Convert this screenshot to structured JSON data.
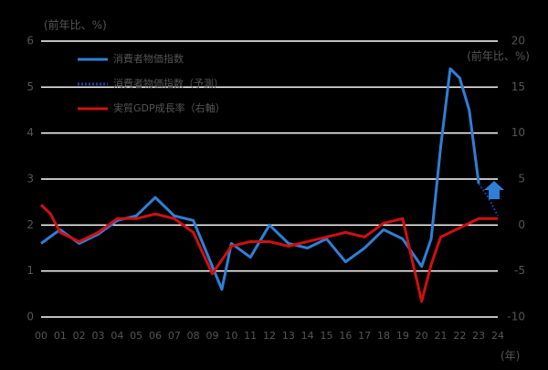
{
  "chart_data": {
    "type": "line",
    "y_label": "(前年比、%)",
    "y2_label": "(前年比、%)",
    "x_unit": "(年)",
    "xlim": [
      2000,
      2024
    ],
    "ylim": [
      0,
      6
    ],
    "y2lim": [
      -10,
      20
    ],
    "xticks": [
      {
        "value": 2000,
        "label": "00"
      },
      {
        "value": 2001,
        "label": "01"
      },
      {
        "value": 2002,
        "label": "02"
      },
      {
        "value": 2003,
        "label": "03"
      },
      {
        "value": 2004,
        "label": "04"
      },
      {
        "value": 2005,
        "label": "05"
      },
      {
        "value": 2006,
        "label": "06"
      },
      {
        "value": 2007,
        "label": "07"
      },
      {
        "value": 2008,
        "label": "08"
      },
      {
        "value": 2009,
        "label": "09"
      },
      {
        "value": 2010,
        "label": "10"
      },
      {
        "value": 2011,
        "label": "11"
      },
      {
        "value": 2012,
        "label": "12"
      },
      {
        "value": 2013,
        "label": "13"
      },
      {
        "value": 2014,
        "label": "14"
      },
      {
        "value": 2015,
        "label": "15"
      },
      {
        "value": 2016,
        "label": "16"
      },
      {
        "value": 2017,
        "label": "17"
      },
      {
        "value": 2018,
        "label": "18"
      },
      {
        "value": 2019,
        "label": "19"
      },
      {
        "value": 2020,
        "label": "20"
      },
      {
        "value": 2021,
        "label": "21"
      },
      {
        "value": 2022,
        "label": "22"
      },
      {
        "value": 2023,
        "label": "23"
      },
      {
        "value": 2024,
        "label": "24"
      }
    ],
    "yticks": [
      0,
      1,
      2,
      3,
      4,
      5,
      6
    ],
    "y2ticks": [
      -10,
      -5,
      0,
      5,
      10,
      15,
      20
    ],
    "grid": true,
    "series": [
      {
        "name": "消費者物価指数",
        "color": "#2f7fd6",
        "style": "solid",
        "x": [
          2000,
          2001,
          2002,
          2003,
          2004,
          2005,
          2006,
          2007,
          2008,
          2009,
          2009.5,
          2010,
          2011,
          2012,
          2013,
          2014,
          2015,
          2016,
          2017,
          2018,
          2019,
          2020,
          2020.5,
          2021,
          2021.5,
          2022,
          2022.5,
          2023
        ],
        "values": [
          1.6,
          1.9,
          1.6,
          1.8,
          2.1,
          2.2,
          2.6,
          2.2,
          2.1,
          1.1,
          0.6,
          1.6,
          1.3,
          2.0,
          1.6,
          1.5,
          1.7,
          1.2,
          1.5,
          1.9,
          1.7,
          1.1,
          1.7,
          3.7,
          5.4,
          5.2,
          4.5,
          2.9
        ]
      },
      {
        "name": "消費者物価指数（予測）",
        "color": "#1f3f9f",
        "style": "dotted",
        "x": [
          2023,
          2023.5,
          2024
        ],
        "values": [
          2.9,
          2.6,
          2.2
        ]
      },
      {
        "name": "実質GDP成長率（右軸）",
        "color": "#d01010",
        "style": "solid",
        "axis": "y2",
        "x": [
          2000,
          2000.5,
          2001,
          2002,
          2003,
          2004,
          2005,
          2006,
          2007,
          2008,
          2009,
          2010,
          2011,
          2012,
          2013,
          2014,
          2015,
          2016,
          2017,
          2018,
          2019,
          2020,
          2020.5,
          2021,
          2022,
          2023,
          2024
        ],
        "values": [
          2.2,
          1.2,
          -0.8,
          -1.8,
          -0.8,
          0.7,
          0.7,
          1.2,
          0.7,
          -0.8,
          -5.3,
          -2.3,
          -1.8,
          -1.8,
          -2.3,
          -1.8,
          -1.3,
          -0.8,
          -1.3,
          0.2,
          0.7,
          -8.3,
          -4.3,
          -1.3,
          -0.3,
          0.7,
          0.7
        ]
      }
    ]
  }
}
